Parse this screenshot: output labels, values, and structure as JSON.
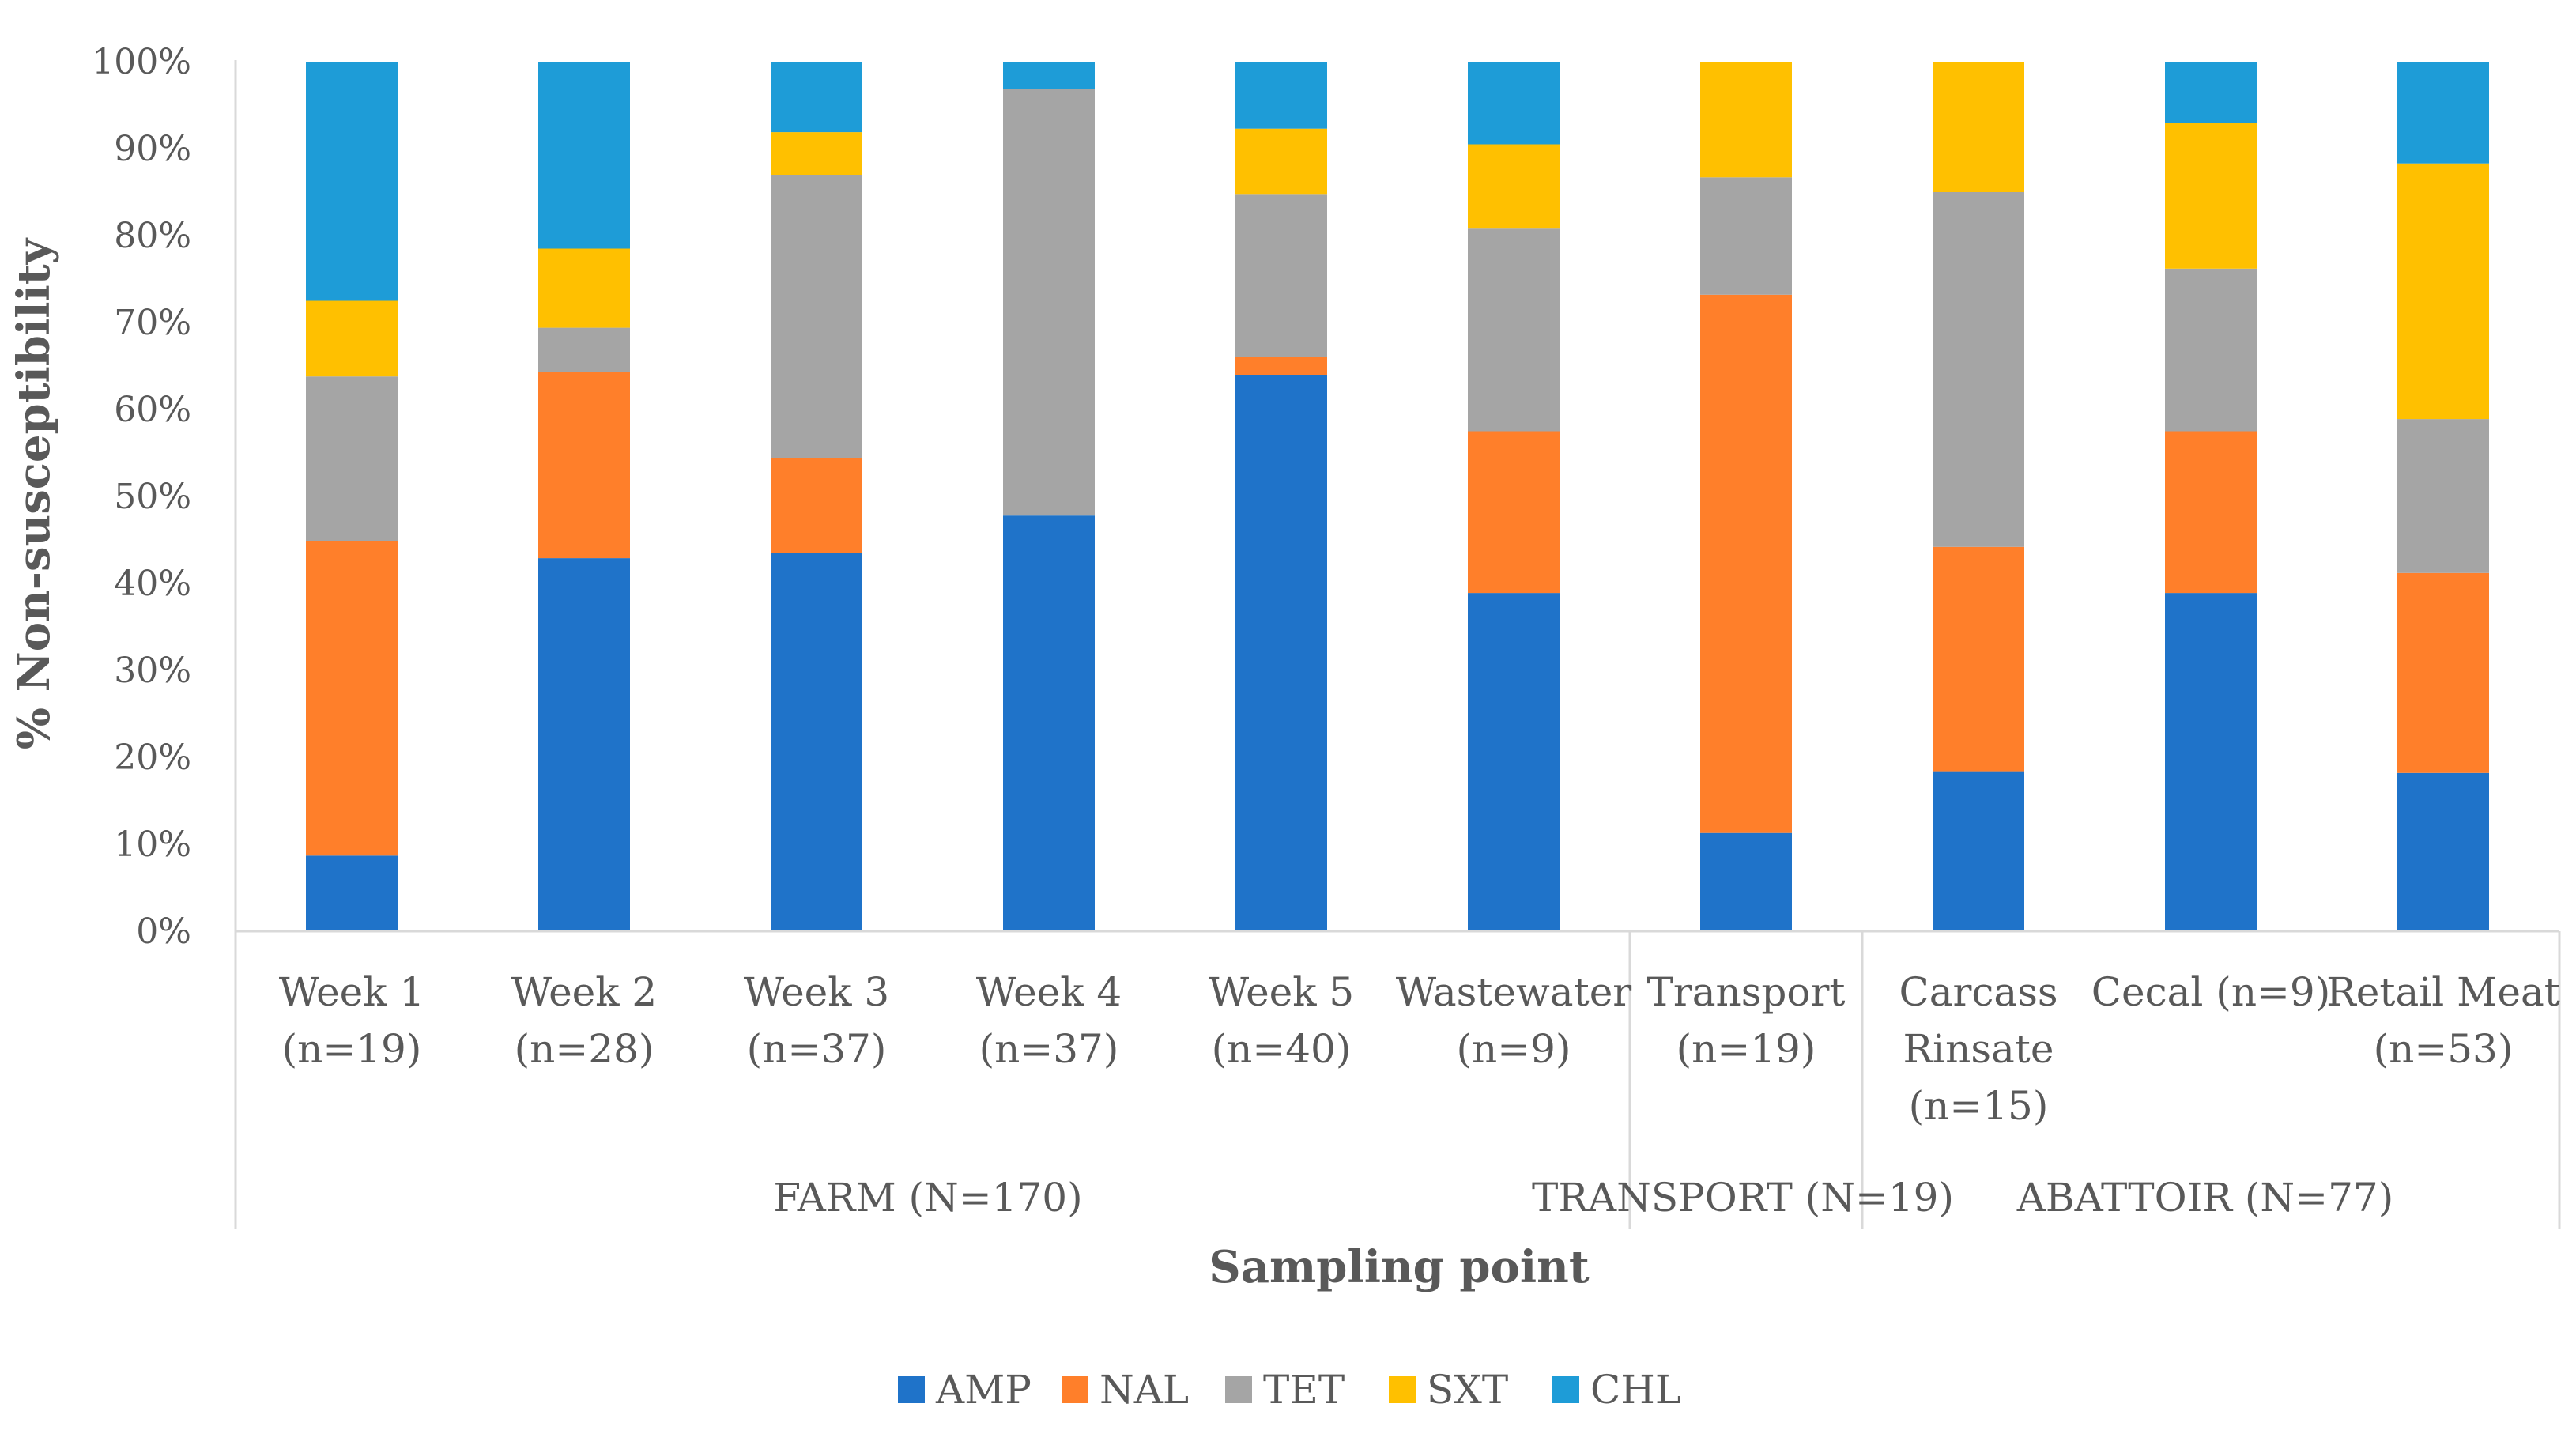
{
  "chart_data": {
    "type": "bar",
    "stacked": true,
    "ylabel": "% Non-susceptibility",
    "xlabel": "Sampling point",
    "ylim": [
      0,
      100
    ],
    "yticks": [
      "0%",
      "10%",
      "20%",
      "30%",
      "40%",
      "50%",
      "60%",
      "70%",
      "80%",
      "90%",
      "100%"
    ],
    "categories": [
      [
        "Week 1",
        "(n=19)"
      ],
      [
        "Week 2",
        "(n=28)"
      ],
      [
        "Week 3",
        "(n=37)"
      ],
      [
        "Week 4",
        "(n=37)"
      ],
      [
        "Week 5",
        "(n=40)"
      ],
      [
        "Wastewater",
        "(n=9)"
      ],
      [
        "Transport",
        "(n=19)"
      ],
      [
        "Carcass",
        "Rinsate",
        "(n=15)"
      ],
      [
        "Cecal (n=9)"
      ],
      [
        "Retail Meat",
        "(n=53)"
      ]
    ],
    "groups": [
      {
        "label": "FARM (N=170)",
        "start": 0,
        "end": 5
      },
      {
        "label": "TRANSPORT (N=19)",
        "start": 6,
        "end": 6
      },
      {
        "label": "ABATTOIR (N=77)",
        "start": 7,
        "end": 9
      }
    ],
    "series": [
      {
        "name": "AMP",
        "color": "#1F73C9",
        "values": [
          8.7,
          42.9,
          43.5,
          47.8,
          64.0,
          38.9,
          11.3,
          18.4,
          38.9,
          18.2
        ]
      },
      {
        "name": "NAL",
        "color": "#FF7F2A",
        "values": [
          36.2,
          21.4,
          10.9,
          0.0,
          2.0,
          18.6,
          61.9,
          25.8,
          18.6,
          23.0
        ]
      },
      {
        "name": "TET",
        "color": "#A5A5A5",
        "values": [
          18.9,
          5.1,
          32.6,
          49.1,
          18.7,
          23.3,
          13.5,
          40.8,
          18.7,
          17.7
        ]
      },
      {
        "name": "SXT",
        "color": "#FFC000",
        "values": [
          8.7,
          9.1,
          4.9,
          0.0,
          7.6,
          9.7,
          13.3,
          15.0,
          16.8,
          29.4
        ]
      },
      {
        "name": "CHL",
        "color": "#1E9CD7",
        "values": [
          27.5,
          21.5,
          8.1,
          3.1,
          7.7,
          9.5,
          0.0,
          0.0,
          7.0,
          11.7
        ]
      }
    ],
    "legend_position": "bottom"
  }
}
